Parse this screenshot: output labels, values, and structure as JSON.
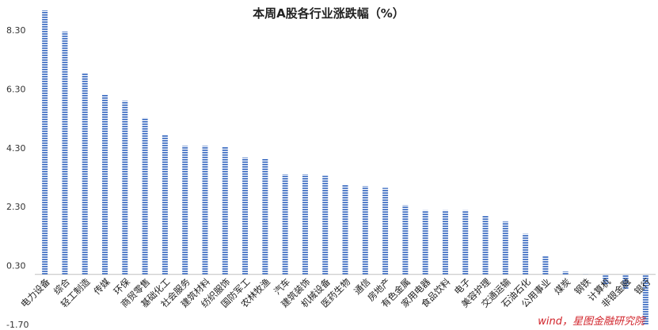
{
  "chart_data": {
    "type": "bar",
    "title": "本周A股各行业涨跌幅（%）",
    "xlabel": "",
    "ylabel": "",
    "ylim": [
      -1.7,
      9.0
    ],
    "yticks": [
      8.3,
      6.3,
      4.3,
      2.3,
      0.3,
      -1.7
    ],
    "ytick_labels": [
      "8.30",
      "6.30",
      "4.30",
      "2.30",
      "0.30",
      "-1.70"
    ],
    "grid": false,
    "legend": "none",
    "bar_color": "#4472c4",
    "bar_pattern": "horizontal-stripes",
    "categories": [
      "电力设备",
      "综合",
      "轻工制造",
      "传媒",
      "环保",
      "商贸零售",
      "基础化工",
      "社会服务",
      "建筑材料",
      "纺织服饰",
      "国防军工",
      "农林牧渔",
      "汽车",
      "建筑装饰",
      "机械设备",
      "医药生物",
      "通信",
      "房地产",
      "有色金属",
      "家用电器",
      "食品饮料",
      "电子",
      "美容护理",
      "交通运输",
      "石油石化",
      "公用事业",
      "煤炭",
      "钢铁",
      "计算机",
      "非银金融",
      "银行"
    ],
    "values": [
      8.97,
      8.25,
      6.85,
      6.1,
      5.9,
      5.32,
      4.75,
      4.37,
      4.37,
      4.33,
      3.97,
      3.92,
      3.4,
      3.4,
      3.35,
      3.06,
      3.0,
      2.94,
      2.35,
      2.18,
      2.18,
      2.18,
      2.0,
      1.8,
      1.38,
      0.62,
      0.1,
      -0.03,
      -0.35,
      -0.5,
      -1.7
    ]
  },
  "watermark": "wind，星图金融研究院"
}
